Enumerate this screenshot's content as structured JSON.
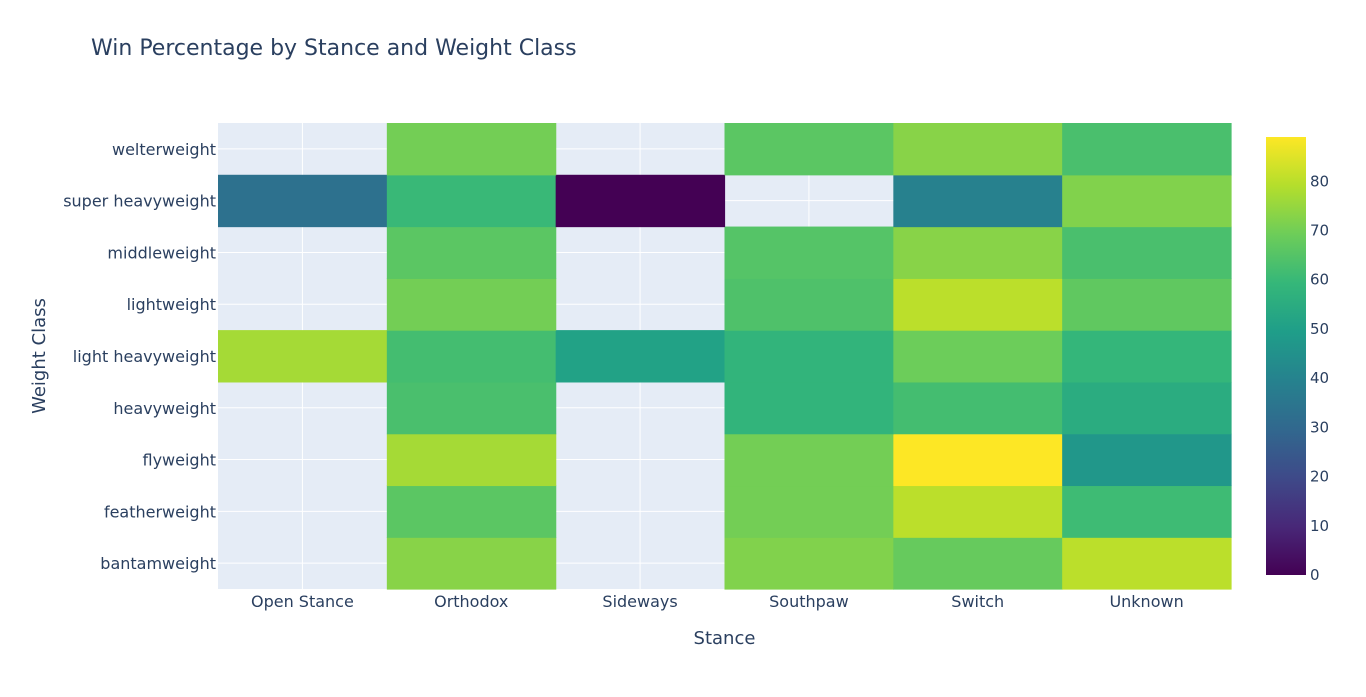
{
  "chart_data": {
    "type": "heatmap",
    "title": "Win Percentage by Stance and Weight Class",
    "xlabel": "Stance",
    "ylabel": "Weight Class",
    "x": [
      "Open Stance",
      "Orthodox",
      "Sideways",
      "Southpaw",
      "Switch",
      "Unknown"
    ],
    "y": [
      "bantamweight",
      "featherweight",
      "flyweight",
      "heavyweight",
      "light heavyweight",
      "lightweight",
      "middleweight",
      "super heavyweight",
      "welterweight"
    ],
    "z": [
      [
        null,
        73,
        null,
        72,
        68,
        80
      ],
      [
        null,
        66,
        null,
        70,
        80,
        61
      ],
      [
        null,
        77,
        null,
        70,
        89,
        47
      ],
      [
        null,
        63,
        null,
        58,
        62,
        55
      ],
      [
        77,
        62,
        51,
        58,
        69,
        59
      ],
      [
        null,
        70,
        null,
        64,
        80,
        67
      ],
      [
        null,
        66,
        null,
        65,
        73,
        63
      ],
      [
        33,
        60,
        0,
        null,
        39,
        72
      ],
      [
        null,
        70,
        null,
        66,
        73,
        63
      ]
    ],
    "zlim": [
      0,
      89
    ],
    "colorscale": "Viridis",
    "colorbar_ticks": [
      0,
      10,
      20,
      30,
      40,
      50,
      60,
      70,
      80
    ],
    "colors": {
      "plot_background": "#e5ecf6",
      "grid": "#ffffff",
      "text": "#2a3f5f"
    }
  }
}
